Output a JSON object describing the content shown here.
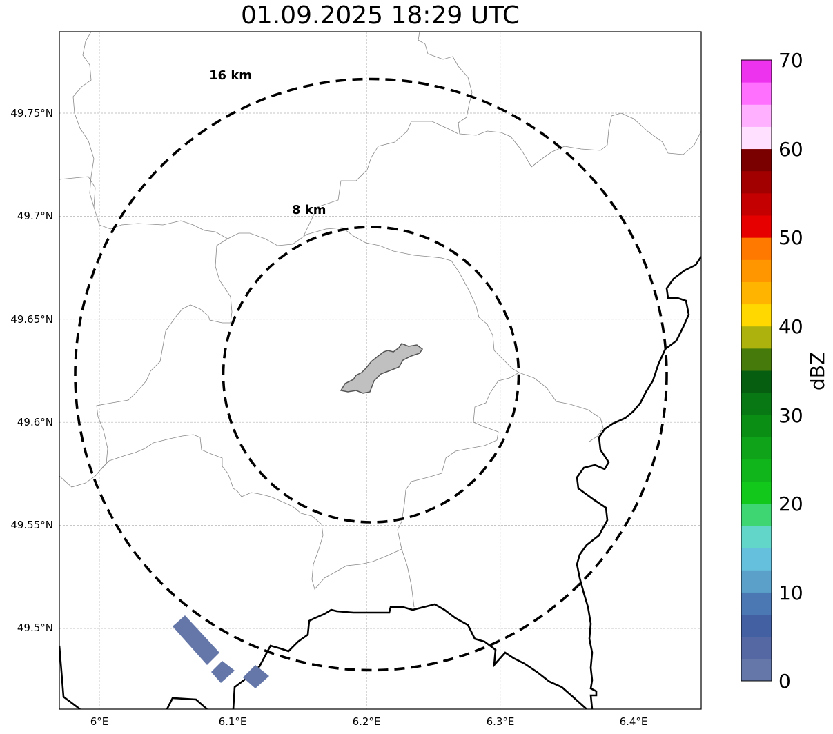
{
  "title": "01.09.2025 18:29 UTC",
  "map": {
    "lat_ticks": [
      {
        "value": 49.75,
        "label": "49.75°N"
      },
      {
        "value": 49.7,
        "label": "49.7°N"
      },
      {
        "value": 49.65,
        "label": "49.65°N"
      },
      {
        "value": 49.6,
        "label": "49.6°N"
      },
      {
        "value": 49.55,
        "label": "49.55°N"
      },
      {
        "value": 49.5,
        "label": "49.5°N"
      }
    ],
    "lon_ticks": [
      {
        "value": 6.0,
        "label": "6°E"
      },
      {
        "value": 6.1,
        "label": "6.1°E"
      },
      {
        "value": 6.2,
        "label": "6.2°E"
      },
      {
        "value": 6.3,
        "label": "6.3°E"
      },
      {
        "value": 6.4,
        "label": "6.4°E"
      }
    ],
    "lon_range": [
      5.97,
      6.45
    ],
    "lat_range": [
      49.46,
      49.79
    ],
    "gridlines": true,
    "range_rings": [
      {
        "label": "16 km",
        "radius_km": 16
      },
      {
        "label": "8 km",
        "radius_km": 8
      }
    ],
    "center_feature": "city-area",
    "radar_echo_color": "#6577a8",
    "land_border_color": "#000000",
    "admin_border_color": "#888888"
  },
  "colorbar": {
    "label": "dBZ",
    "range": [
      0,
      70
    ],
    "ticks": [
      "0",
      "10",
      "20",
      "30",
      "40",
      "50",
      "60",
      "70"
    ],
    "colors": [
      "#6577a8",
      "#5568a3",
      "#4361a2",
      "#4b78b2",
      "#5aa0c8",
      "#64c0dd",
      "#62d6c8",
      "#3ed673",
      "#12c81a",
      "#0fb51a",
      "#0ea318",
      "#0b8e14",
      "#087814",
      "#065f10",
      "#467a0a",
      "#adb20c",
      "#ffd800",
      "#ffb400",
      "#ff9600",
      "#ff7800",
      "#e60000",
      "#c40000",
      "#a20000",
      "#7a0000",
      "#ffe0ff",
      "#ffb0ff",
      "#ff70ff",
      "#ee33ee"
    ]
  }
}
